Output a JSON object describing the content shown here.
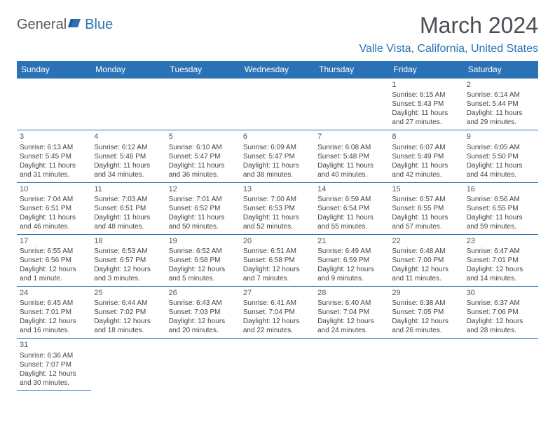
{
  "logo": {
    "text_dark": "General",
    "text_blue": "Blue"
  },
  "title": "March 2024",
  "location": "Valle Vista, California, United States",
  "colors": {
    "header_bg": "#2a72b5",
    "header_text": "#ffffff",
    "border": "#2a72b5",
    "body_text": "#444",
    "title_text": "#4a4f54"
  },
  "weekdays": [
    "Sunday",
    "Monday",
    "Tuesday",
    "Wednesday",
    "Thursday",
    "Friday",
    "Saturday"
  ],
  "weeks": [
    [
      null,
      null,
      null,
      null,
      null,
      {
        "n": "1",
        "sr": "Sunrise: 6:15 AM",
        "ss": "Sunset: 5:43 PM",
        "d1": "Daylight: 11 hours",
        "d2": "and 27 minutes."
      },
      {
        "n": "2",
        "sr": "Sunrise: 6:14 AM",
        "ss": "Sunset: 5:44 PM",
        "d1": "Daylight: 11 hours",
        "d2": "and 29 minutes."
      }
    ],
    [
      {
        "n": "3",
        "sr": "Sunrise: 6:13 AM",
        "ss": "Sunset: 5:45 PM",
        "d1": "Daylight: 11 hours",
        "d2": "and 31 minutes."
      },
      {
        "n": "4",
        "sr": "Sunrise: 6:12 AM",
        "ss": "Sunset: 5:46 PM",
        "d1": "Daylight: 11 hours",
        "d2": "and 34 minutes."
      },
      {
        "n": "5",
        "sr": "Sunrise: 6:10 AM",
        "ss": "Sunset: 5:47 PM",
        "d1": "Daylight: 11 hours",
        "d2": "and 36 minutes."
      },
      {
        "n": "6",
        "sr": "Sunrise: 6:09 AM",
        "ss": "Sunset: 5:47 PM",
        "d1": "Daylight: 11 hours",
        "d2": "and 38 minutes."
      },
      {
        "n": "7",
        "sr": "Sunrise: 6:08 AM",
        "ss": "Sunset: 5:48 PM",
        "d1": "Daylight: 11 hours",
        "d2": "and 40 minutes."
      },
      {
        "n": "8",
        "sr": "Sunrise: 6:07 AM",
        "ss": "Sunset: 5:49 PM",
        "d1": "Daylight: 11 hours",
        "d2": "and 42 minutes."
      },
      {
        "n": "9",
        "sr": "Sunrise: 6:05 AM",
        "ss": "Sunset: 5:50 PM",
        "d1": "Daylight: 11 hours",
        "d2": "and 44 minutes."
      }
    ],
    [
      {
        "n": "10",
        "sr": "Sunrise: 7:04 AM",
        "ss": "Sunset: 6:51 PM",
        "d1": "Daylight: 11 hours",
        "d2": "and 46 minutes."
      },
      {
        "n": "11",
        "sr": "Sunrise: 7:03 AM",
        "ss": "Sunset: 6:51 PM",
        "d1": "Daylight: 11 hours",
        "d2": "and 48 minutes."
      },
      {
        "n": "12",
        "sr": "Sunrise: 7:01 AM",
        "ss": "Sunset: 6:52 PM",
        "d1": "Daylight: 11 hours",
        "d2": "and 50 minutes."
      },
      {
        "n": "13",
        "sr": "Sunrise: 7:00 AM",
        "ss": "Sunset: 6:53 PM",
        "d1": "Daylight: 11 hours",
        "d2": "and 52 minutes."
      },
      {
        "n": "14",
        "sr": "Sunrise: 6:59 AM",
        "ss": "Sunset: 6:54 PM",
        "d1": "Daylight: 11 hours",
        "d2": "and 55 minutes."
      },
      {
        "n": "15",
        "sr": "Sunrise: 6:57 AM",
        "ss": "Sunset: 6:55 PM",
        "d1": "Daylight: 11 hours",
        "d2": "and 57 minutes."
      },
      {
        "n": "16",
        "sr": "Sunrise: 6:56 AM",
        "ss": "Sunset: 6:55 PM",
        "d1": "Daylight: 11 hours",
        "d2": "and 59 minutes."
      }
    ],
    [
      {
        "n": "17",
        "sr": "Sunrise: 6:55 AM",
        "ss": "Sunset: 6:56 PM",
        "d1": "Daylight: 12 hours",
        "d2": "and 1 minute."
      },
      {
        "n": "18",
        "sr": "Sunrise: 6:53 AM",
        "ss": "Sunset: 6:57 PM",
        "d1": "Daylight: 12 hours",
        "d2": "and 3 minutes."
      },
      {
        "n": "19",
        "sr": "Sunrise: 6:52 AM",
        "ss": "Sunset: 6:58 PM",
        "d1": "Daylight: 12 hours",
        "d2": "and 5 minutes."
      },
      {
        "n": "20",
        "sr": "Sunrise: 6:51 AM",
        "ss": "Sunset: 6:58 PM",
        "d1": "Daylight: 12 hours",
        "d2": "and 7 minutes."
      },
      {
        "n": "21",
        "sr": "Sunrise: 6:49 AM",
        "ss": "Sunset: 6:59 PM",
        "d1": "Daylight: 12 hours",
        "d2": "and 9 minutes."
      },
      {
        "n": "22",
        "sr": "Sunrise: 6:48 AM",
        "ss": "Sunset: 7:00 PM",
        "d1": "Daylight: 12 hours",
        "d2": "and 11 minutes."
      },
      {
        "n": "23",
        "sr": "Sunrise: 6:47 AM",
        "ss": "Sunset: 7:01 PM",
        "d1": "Daylight: 12 hours",
        "d2": "and 14 minutes."
      }
    ],
    [
      {
        "n": "24",
        "sr": "Sunrise: 6:45 AM",
        "ss": "Sunset: 7:01 PM",
        "d1": "Daylight: 12 hours",
        "d2": "and 16 minutes."
      },
      {
        "n": "25",
        "sr": "Sunrise: 6:44 AM",
        "ss": "Sunset: 7:02 PM",
        "d1": "Daylight: 12 hours",
        "d2": "and 18 minutes."
      },
      {
        "n": "26",
        "sr": "Sunrise: 6:43 AM",
        "ss": "Sunset: 7:03 PM",
        "d1": "Daylight: 12 hours",
        "d2": "and 20 minutes."
      },
      {
        "n": "27",
        "sr": "Sunrise: 6:41 AM",
        "ss": "Sunset: 7:04 PM",
        "d1": "Daylight: 12 hours",
        "d2": "and 22 minutes."
      },
      {
        "n": "28",
        "sr": "Sunrise: 6:40 AM",
        "ss": "Sunset: 7:04 PM",
        "d1": "Daylight: 12 hours",
        "d2": "and 24 minutes."
      },
      {
        "n": "29",
        "sr": "Sunrise: 6:38 AM",
        "ss": "Sunset: 7:05 PM",
        "d1": "Daylight: 12 hours",
        "d2": "and 26 minutes."
      },
      {
        "n": "30",
        "sr": "Sunrise: 6:37 AM",
        "ss": "Sunset: 7:06 PM",
        "d1": "Daylight: 12 hours",
        "d2": "and 28 minutes."
      }
    ],
    [
      {
        "n": "31",
        "sr": "Sunrise: 6:36 AM",
        "ss": "Sunset: 7:07 PM",
        "d1": "Daylight: 12 hours",
        "d2": "and 30 minutes."
      },
      null,
      null,
      null,
      null,
      null,
      null
    ]
  ]
}
